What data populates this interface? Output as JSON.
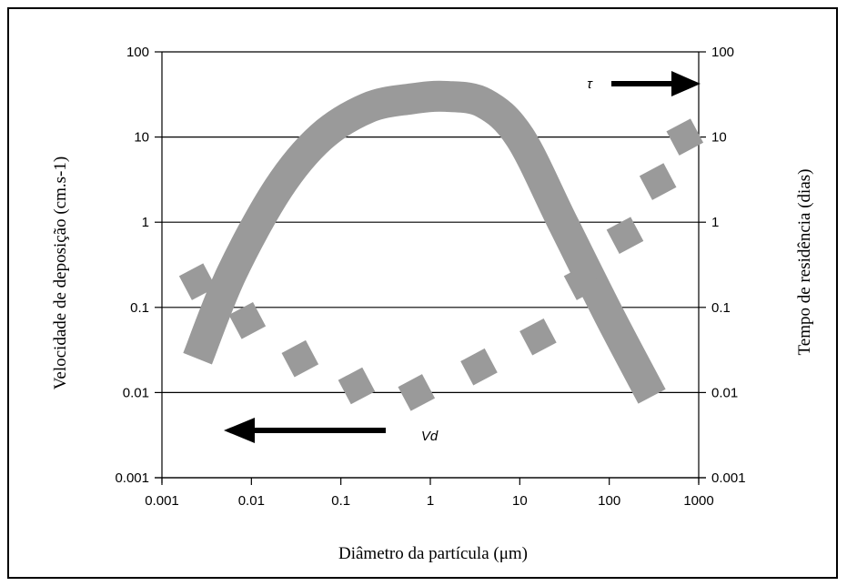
{
  "chart_data": {
    "type": "line",
    "xlabel": "Diâmetro da partícula (μm)",
    "ylabel_left": "Velocidade de deposição (cm.s-1)",
    "ylabel_right": "Tempo de residência (dias)",
    "x_scale": "log",
    "y_scale": "log",
    "xlim": [
      0.001,
      1000
    ],
    "ylim": [
      0.001,
      100
    ],
    "x_ticks": [
      "0.001",
      "0.01",
      "0.1",
      "1",
      "10",
      "100",
      "1000"
    ],
    "y_ticks_left": [
      "0.001",
      "0.01",
      "0.1",
      "1",
      "10",
      "100"
    ],
    "y_ticks_right": [
      "0.001",
      "0.01",
      "0.1",
      "1",
      "10",
      "100"
    ],
    "grid": "horizontal",
    "series": [
      {
        "name": "τ",
        "style": "solid-band",
        "color": "#9a9a9a",
        "x": [
          0.0025,
          0.006,
          0.02,
          0.06,
          0.2,
          0.6,
          1.5,
          4,
          10,
          30,
          100,
          300
        ],
        "y": [
          0.025,
          0.25,
          2.5,
          10,
          22,
          28,
          30,
          25,
          10,
          1.0,
          0.08,
          0.009
        ]
      },
      {
        "name": "Vd",
        "style": "dotted-squares",
        "color": "#9a9a9a",
        "x": [
          0.0025,
          0.009,
          0.035,
          0.15,
          0.7,
          3.5,
          16,
          50,
          150,
          350,
          700
        ],
        "y": [
          0.2,
          0.07,
          0.025,
          0.012,
          0.01,
          0.02,
          0.045,
          0.2,
          0.7,
          3,
          10
        ]
      }
    ],
    "annotations": [
      {
        "text": "τ",
        "arrow": "right"
      },
      {
        "text": "Vd",
        "arrow": "left"
      }
    ]
  }
}
